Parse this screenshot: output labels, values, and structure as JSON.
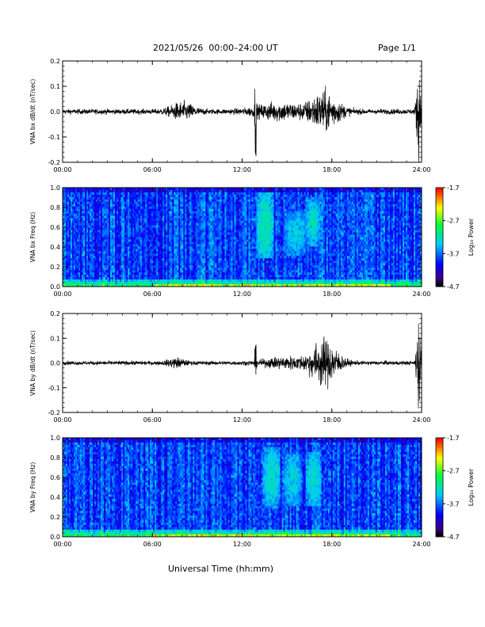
{
  "header": {
    "title": "2021/05/26  00:00–24:00 UT",
    "page": "Page 1/1"
  },
  "x_axis_title": "Universal Time (hh:mm)",
  "colorbar": {
    "label": "Log₁₀ Power",
    "ticks": [
      "-1.7",
      "-2.7",
      "-3.7",
      "-4.7"
    ],
    "colors": [
      "#ff0000",
      "#ffff00",
      "#00ff00",
      "#00ffff",
      "#0000ff",
      "#000000"
    ]
  },
  "chart_data": [
    {
      "type": "line",
      "id": "bx-timeseries",
      "ylabel": "VNA bx dB/dt (nT/sec)",
      "x_ticks": [
        "00:00",
        "06:00",
        "12:00",
        "18:00",
        "24:00"
      ],
      "y_ticks": [
        "0.2",
        "0.1",
        "0.0",
        "-0.1",
        "-0.2"
      ],
      "xlim": [
        0,
        24
      ],
      "ylim": [
        -0.2,
        0.2
      ],
      "series": [
        {
          "values_description_hours": [
            0,
            24
          ],
          "baseline_amplitude": 0.01,
          "bursts": [
            {
              "center_h": 8.0,
              "width_h": 0.9,
              "amplitude": 0.03
            },
            {
              "center_h": 12.9,
              "width_h": 0.05,
              "amplitude": 0.2
            },
            {
              "center_h": 14.5,
              "width_h": 1.8,
              "amplitude": 0.03
            },
            {
              "center_h": 17.5,
              "width_h": 1.1,
              "amplitude": 0.07
            },
            {
              "center_h": 23.8,
              "width_h": 0.15,
              "amplitude": 0.2
            }
          ]
        }
      ]
    },
    {
      "type": "heatmap",
      "id": "bx-spectrogram",
      "ylabel": "VNA bx Freq (Hz)",
      "x_ticks": [
        "00:00",
        "06:00",
        "12:00",
        "18:00",
        "24:00"
      ],
      "y_ticks": [
        "1.0",
        "0.8",
        "0.6",
        "0.4",
        "0.2",
        "0.0"
      ],
      "xlim": [
        0,
        24
      ],
      "ylim": [
        0.0,
        1.0
      ],
      "color_range_log10": [
        -4.7,
        -1.7
      ],
      "enhancements": [
        {
          "t_start_h": 13.0,
          "t_end_h": 14.1,
          "f_low_hz": 0.28,
          "f_high_hz": 0.95,
          "level": -2.8
        },
        {
          "t_start_h": 14.9,
          "t_end_h": 16.3,
          "f_low_hz": 0.32,
          "f_high_hz": 0.75,
          "level": -3.0
        },
        {
          "t_start_h": 16.3,
          "t_end_h": 17.2,
          "f_low_hz": 0.4,
          "f_high_hz": 0.9,
          "level": -2.9
        }
      ]
    },
    {
      "type": "line",
      "id": "by-timeseries",
      "ylabel": "VNA by dB/dt (nT/sec)",
      "x_ticks": [
        "00:00",
        "06:00",
        "12:00",
        "18:00",
        "24:00"
      ],
      "y_ticks": [
        "0.2",
        "0.1",
        "0.0",
        "-0.1",
        "-0.2"
      ],
      "xlim": [
        0,
        24
      ],
      "ylim": [
        -0.2,
        0.2
      ],
      "series": [
        {
          "values_description_hours": [
            0,
            24
          ],
          "baseline_amplitude": 0.008,
          "bursts": [
            {
              "center_h": 7.6,
              "width_h": 0.6,
              "amplitude": 0.015
            },
            {
              "center_h": 12.9,
              "width_h": 0.05,
              "amplitude": 0.08
            },
            {
              "center_h": 15.0,
              "width_h": 1.6,
              "amplitude": 0.02
            },
            {
              "center_h": 17.5,
              "width_h": 1.0,
              "amplitude": 0.09
            },
            {
              "center_h": 23.8,
              "width_h": 0.15,
              "amplitude": 0.2
            }
          ]
        }
      ]
    },
    {
      "type": "heatmap",
      "id": "by-spectrogram",
      "ylabel": "VNA by Freq (Hz)",
      "x_ticks": [
        "00:00",
        "06:00",
        "12:00",
        "18:00",
        "24:00"
      ],
      "y_ticks": [
        "1.0",
        "0.8",
        "0.6",
        "0.4",
        "0.2",
        "0.0"
      ],
      "xlim": [
        0,
        24
      ],
      "ylim": [
        0.0,
        1.0
      ],
      "color_range_log10": [
        -4.7,
        -1.7
      ],
      "enhancements": [
        {
          "t_start_h": 13.4,
          "t_end_h": 14.6,
          "f_low_hz": 0.28,
          "f_high_hz": 0.9,
          "level": -2.9
        },
        {
          "t_start_h": 14.8,
          "t_end_h": 16.0,
          "f_low_hz": 0.3,
          "f_high_hz": 0.85,
          "level": -3.0
        },
        {
          "t_start_h": 16.3,
          "t_end_h": 17.3,
          "f_low_hz": 0.3,
          "f_high_hz": 0.85,
          "level": -2.9
        }
      ]
    }
  ]
}
